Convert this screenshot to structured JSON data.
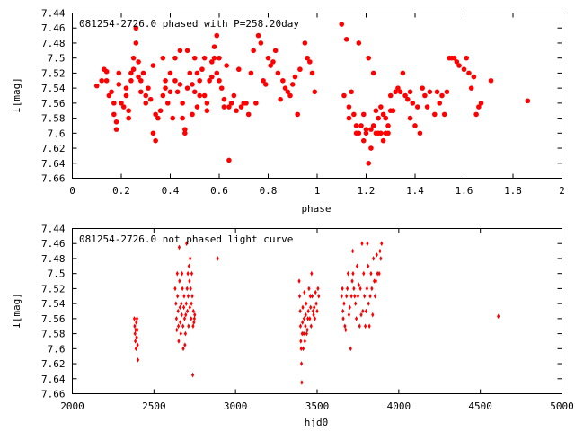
{
  "chart_data": [
    {
      "type": "scatter",
      "title": "081254-2726.0 phased with P=258.20day",
      "xlabel": "phase",
      "ylabel": "I[mag]",
      "xlim": [
        0,
        2
      ],
      "ylim": [
        7.44,
        7.66
      ],
      "y_inverted": true,
      "grid": false,
      "marker": "filled-circle",
      "color": "#ff0000",
      "x_ticks": [
        "0",
        "0.2",
        "0.4",
        "0.6",
        "0.8",
        "1",
        "1.2",
        "1.4",
        "1.6",
        "1.8",
        "2"
      ],
      "y_ticks": [
        "7.44",
        "7.46",
        "7.48",
        "7.5",
        "7.52",
        "7.54",
        "7.56",
        "7.58",
        "7.6",
        "7.62",
        "7.64",
        "7.66"
      ],
      "points": [
        [
          0.1,
          7.537
        ],
        [
          0.12,
          7.53
        ],
        [
          0.13,
          7.515
        ],
        [
          0.14,
          7.518
        ],
        [
          0.14,
          7.53
        ],
        [
          0.15,
          7.55
        ],
        [
          0.16,
          7.545
        ],
        [
          0.17,
          7.56
        ],
        [
          0.17,
          7.575
        ],
        [
          0.18,
          7.585
        ],
        [
          0.18,
          7.595
        ],
        [
          0.19,
          7.52
        ],
        [
          0.19,
          7.535
        ],
        [
          0.2,
          7.56
        ],
        [
          0.21,
          7.565
        ],
        [
          0.22,
          7.54
        ],
        [
          0.22,
          7.55
        ],
        [
          0.23,
          7.57
        ],
        [
          0.23,
          7.58
        ],
        [
          0.24,
          7.52
        ],
        [
          0.24,
          7.53
        ],
        [
          0.25,
          7.5
        ],
        [
          0.25,
          7.515
        ],
        [
          0.26,
          7.48
        ],
        [
          0.26,
          7.46
        ],
        [
          0.27,
          7.505
        ],
        [
          0.27,
          7.525
        ],
        [
          0.28,
          7.53
        ],
        [
          0.28,
          7.545
        ],
        [
          0.29,
          7.52
        ],
        [
          0.3,
          7.55
        ],
        [
          0.3,
          7.56
        ],
        [
          0.31,
          7.54
        ],
        [
          0.32,
          7.555
        ],
        [
          0.33,
          7.51
        ],
        [
          0.33,
          7.6
        ],
        [
          0.34,
          7.61
        ],
        [
          0.34,
          7.575
        ],
        [
          0.35,
          7.58
        ],
        [
          0.36,
          7.57
        ],
        [
          0.37,
          7.55
        ],
        [
          0.37,
          7.5
        ],
        [
          0.38,
          7.53
        ],
        [
          0.38,
          7.54
        ],
        [
          0.39,
          7.56
        ],
        [
          0.4,
          7.52
        ],
        [
          0.4,
          7.545
        ],
        [
          0.41,
          7.58
        ],
        [
          0.42,
          7.5
        ],
        [
          0.42,
          7.53
        ],
        [
          0.43,
          7.545
        ],
        [
          0.44,
          7.49
        ],
        [
          0.44,
          7.535
        ],
        [
          0.45,
          7.56
        ],
        [
          0.45,
          7.58
        ],
        [
          0.46,
          7.6
        ],
        [
          0.46,
          7.595
        ],
        [
          0.47,
          7.54
        ],
        [
          0.47,
          7.49
        ],
        [
          0.48,
          7.52
        ],
        [
          0.49,
          7.535
        ],
        [
          0.49,
          7.575
        ],
        [
          0.5,
          7.5
        ],
        [
          0.5,
          7.545
        ],
        [
          0.51,
          7.52
        ],
        [
          0.51,
          7.565
        ],
        [
          0.52,
          7.53
        ],
        [
          0.52,
          7.55
        ],
        [
          0.53,
          7.515
        ],
        [
          0.54,
          7.5
        ],
        [
          0.54,
          7.55
        ],
        [
          0.55,
          7.56
        ],
        [
          0.55,
          7.57
        ],
        [
          0.56,
          7.53
        ],
        [
          0.57,
          7.505
        ],
        [
          0.57,
          7.525
        ],
        [
          0.58,
          7.5
        ],
        [
          0.58,
          7.485
        ],
        [
          0.59,
          7.47
        ],
        [
          0.59,
          7.52
        ],
        [
          0.6,
          7.5
        ],
        [
          0.6,
          7.53
        ],
        [
          0.61,
          7.54
        ],
        [
          0.62,
          7.555
        ],
        [
          0.62,
          7.565
        ],
        [
          0.63,
          7.51
        ],
        [
          0.64,
          7.565
        ],
        [
          0.64,
          7.636
        ],
        [
          0.65,
          7.56
        ],
        [
          0.66,
          7.55
        ],
        [
          0.67,
          7.57
        ],
        [
          0.68,
          7.515
        ],
        [
          0.69,
          7.565
        ],
        [
          0.7,
          7.56
        ],
        [
          0.71,
          7.56
        ],
        [
          0.72,
          7.575
        ],
        [
          0.73,
          7.52
        ],
        [
          0.74,
          7.49
        ],
        [
          0.75,
          7.56
        ],
        [
          0.76,
          7.47
        ],
        [
          0.77,
          7.48
        ],
        [
          0.78,
          7.53
        ],
        [
          0.79,
          7.535
        ],
        [
          0.8,
          7.5
        ],
        [
          0.81,
          7.51
        ],
        [
          0.82,
          7.505
        ],
        [
          0.83,
          7.49
        ],
        [
          0.84,
          7.52
        ],
        [
          0.85,
          7.555
        ],
        [
          0.86,
          7.53
        ],
        [
          0.87,
          7.54
        ],
        [
          0.88,
          7.545
        ],
        [
          0.89,
          7.55
        ],
        [
          0.9,
          7.535
        ],
        [
          0.91,
          7.525
        ],
        [
          0.92,
          7.575
        ],
        [
          0.93,
          7.515
        ],
        [
          0.95,
          7.48
        ],
        [
          0.96,
          7.5
        ],
        [
          0.97,
          7.505
        ],
        [
          0.98,
          7.52
        ],
        [
          0.99,
          7.545
        ],
        [
          1.1,
          7.455
        ],
        [
          1.11,
          7.55
        ],
        [
          1.12,
          7.475
        ],
        [
          1.13,
          7.565
        ],
        [
          1.13,
          7.58
        ],
        [
          1.14,
          7.545
        ],
        [
          1.15,
          7.575
        ],
        [
          1.16,
          7.59
        ],
        [
          1.16,
          7.6
        ],
        [
          1.17,
          7.48
        ],
        [
          1.17,
          7.6
        ],
        [
          1.18,
          7.59
        ],
        [
          1.19,
          7.575
        ],
        [
          1.19,
          7.61
        ],
        [
          1.2,
          7.595
        ],
        [
          1.2,
          7.6
        ],
        [
          1.21,
          7.5
        ],
        [
          1.21,
          7.64
        ],
        [
          1.22,
          7.62
        ],
        [
          1.22,
          7.595
        ],
        [
          1.23,
          7.52
        ],
        [
          1.23,
          7.59
        ],
        [
          1.24,
          7.6
        ],
        [
          1.24,
          7.57
        ],
        [
          1.25,
          7.6
        ],
        [
          1.25,
          7.58
        ],
        [
          1.26,
          7.565
        ],
        [
          1.26,
          7.6
        ],
        [
          1.27,
          7.575
        ],
        [
          1.27,
          7.61
        ],
        [
          1.28,
          7.6
        ],
        [
          1.28,
          7.58
        ],
        [
          1.29,
          7.59
        ],
        [
          1.29,
          7.6
        ],
        [
          1.3,
          7.57
        ],
        [
          1.3,
          7.55
        ],
        [
          1.31,
          7.57
        ],
        [
          1.32,
          7.545
        ],
        [
          1.33,
          7.54
        ],
        [
          1.34,
          7.545
        ],
        [
          1.35,
          7.52
        ],
        [
          1.36,
          7.55
        ],
        [
          1.37,
          7.555
        ],
        [
          1.38,
          7.545
        ],
        [
          1.38,
          7.58
        ],
        [
          1.39,
          7.56
        ],
        [
          1.4,
          7.59
        ],
        [
          1.41,
          7.565
        ],
        [
          1.42,
          7.6
        ],
        [
          1.43,
          7.54
        ],
        [
          1.44,
          7.55
        ],
        [
          1.45,
          7.565
        ],
        [
          1.46,
          7.545
        ],
        [
          1.48,
          7.575
        ],
        [
          1.49,
          7.545
        ],
        [
          1.5,
          7.56
        ],
        [
          1.51,
          7.55
        ],
        [
          1.52,
          7.575
        ],
        [
          1.53,
          7.545
        ],
        [
          1.54,
          7.5
        ],
        [
          1.55,
          7.5
        ],
        [
          1.56,
          7.5
        ],
        [
          1.57,
          7.505
        ],
        [
          1.58,
          7.51
        ],
        [
          1.6,
          7.515
        ],
        [
          1.61,
          7.5
        ],
        [
          1.62,
          7.52
        ],
        [
          1.63,
          7.54
        ],
        [
          1.64,
          7.525
        ],
        [
          1.65,
          7.575
        ],
        [
          1.66,
          7.565
        ],
        [
          1.67,
          7.56
        ],
        [
          1.71,
          7.53
        ],
        [
          1.86,
          7.557
        ]
      ]
    },
    {
      "type": "scatter",
      "title": "081254-2726.0 not phased light curve",
      "xlabel": "hjd0",
      "ylabel": "I[mag]",
      "xlim": [
        2000,
        5000
      ],
      "ylim": [
        7.44,
        7.66
      ],
      "y_inverted": true,
      "grid": false,
      "marker": "small-diamond",
      "color": "#ff0000",
      "x_ticks": [
        "2000",
        "2500",
        "3000",
        "3500",
        "4000",
        "4500",
        "5000"
      ],
      "y_ticks": [
        "7.44",
        "7.46",
        "7.48",
        "7.5",
        "7.52",
        "7.54",
        "7.56",
        "7.58",
        "7.6",
        "7.62",
        "7.64",
        "7.66"
      ],
      "points": [
        [
          2380,
          7.56
        ],
        [
          2382,
          7.57
        ],
        [
          2384,
          7.58
        ],
        [
          2386,
          7.59
        ],
        [
          2388,
          7.575
        ],
        [
          2390,
          7.6
        ],
        [
          2392,
          7.565
        ],
        [
          2394,
          7.585
        ],
        [
          2396,
          7.56
        ],
        [
          2398,
          7.575
        ],
        [
          2400,
          7.595
        ],
        [
          2402,
          7.615
        ],
        [
          2630,
          7.52
        ],
        [
          2635,
          7.54
        ],
        [
          2638,
          7.56
        ],
        [
          2640,
          7.575
        ],
        [
          2643,
          7.5
        ],
        [
          2645,
          7.53
        ],
        [
          2648,
          7.55
        ],
        [
          2650,
          7.57
        ],
        [
          2652,
          7.59
        ],
        [
          2655,
          7.465
        ],
        [
          2657,
          7.51
        ],
        [
          2660,
          7.545
        ],
        [
          2662,
          7.565
        ],
        [
          2665,
          7.58
        ],
        [
          2668,
          7.54
        ],
        [
          2670,
          7.555
        ],
        [
          2672,
          7.5
        ],
        [
          2675,
          7.52
        ],
        [
          2678,
          7.57
        ],
        [
          2680,
          7.6
        ],
        [
          2683,
          7.545
        ],
        [
          2685,
          7.53
        ],
        [
          2688,
          7.56
        ],
        [
          2690,
          7.595
        ],
        [
          2693,
          7.58
        ],
        [
          2695,
          7.555
        ],
        [
          2698,
          7.54
        ],
        [
          2700,
          7.46
        ],
        [
          2703,
          7.52
        ],
        [
          2705,
          7.55
        ],
        [
          2708,
          7.5
        ],
        [
          2710,
          7.53
        ],
        [
          2712,
          7.57
        ],
        [
          2715,
          7.49
        ],
        [
          2718,
          7.51
        ],
        [
          2720,
          7.545
        ],
        [
          2722,
          7.48
        ],
        [
          2725,
          7.52
        ],
        [
          2728,
          7.56
        ],
        [
          2730,
          7.54
        ],
        [
          2732,
          7.5
        ],
        [
          2735,
          7.53
        ],
        [
          2738,
          7.635
        ],
        [
          2740,
          7.57
        ],
        [
          2742,
          7.55
        ],
        [
          2745,
          7.565
        ],
        [
          2748,
          7.56
        ],
        [
          2750,
          7.555
        ],
        [
          2890,
          7.48
        ],
        [
          3390,
          7.51
        ],
        [
          3393,
          7.53
        ],
        [
          3396,
          7.55
        ],
        [
          3398,
          7.57
        ],
        [
          3400,
          7.59
        ],
        [
          3402,
          7.6
        ],
        [
          3404,
          7.62
        ],
        [
          3406,
          7.645
        ],
        [
          3408,
          7.58
        ],
        [
          3410,
          7.565
        ],
        [
          3412,
          7.545
        ],
        [
          3415,
          7.6
        ],
        [
          3418,
          7.58
        ],
        [
          3420,
          7.56
        ],
        [
          3422,
          7.525
        ],
        [
          3425,
          7.59
        ],
        [
          3428,
          7.57
        ],
        [
          3430,
          7.555
        ],
        [
          3433,
          7.54
        ],
        [
          3436,
          7.58
        ],
        [
          3440,
          7.575
        ],
        [
          3443,
          7.56
        ],
        [
          3446,
          7.55
        ],
        [
          3450,
          7.52
        ],
        [
          3455,
          7.56
        ],
        [
          3458,
          7.53
        ],
        [
          3460,
          7.545
        ],
        [
          3463,
          7.57
        ],
        [
          3466,
          7.5
        ],
        [
          3470,
          7.53
        ],
        [
          3475,
          7.55
        ],
        [
          3478,
          7.555
        ],
        [
          3482,
          7.545
        ],
        [
          3486,
          7.56
        ],
        [
          3490,
          7.525
        ],
        [
          3495,
          7.54
        ],
        [
          3500,
          7.55
        ],
        [
          3505,
          7.52
        ],
        [
          3510,
          7.53
        ],
        [
          3650,
          7.53
        ],
        [
          3655,
          7.52
        ],
        [
          3658,
          7.55
        ],
        [
          3660,
          7.56
        ],
        [
          3665,
          7.54
        ],
        [
          3670,
          7.57
        ],
        [
          3675,
          7.575
        ],
        [
          3680,
          7.53
        ],
        [
          3685,
          7.52
        ],
        [
          3690,
          7.5
        ],
        [
          3695,
          7.555
        ],
        [
          3700,
          7.545
        ],
        [
          3705,
          7.6
        ],
        [
          3710,
          7.53
        ],
        [
          3715,
          7.51
        ],
        [
          3718,
          7.47
        ],
        [
          3720,
          7.5
        ],
        [
          3725,
          7.52
        ],
        [
          3730,
          7.53
        ],
        [
          3735,
          7.54
        ],
        [
          3740,
          7.56
        ],
        [
          3745,
          7.49
        ],
        [
          3750,
          7.53
        ],
        [
          3755,
          7.515
        ],
        [
          3760,
          7.57
        ],
        [
          3765,
          7.52
        ],
        [
          3770,
          7.555
        ],
        [
          3775,
          7.46
        ],
        [
          3780,
          7.55
        ],
        [
          3785,
          7.5
        ],
        [
          3790,
          7.53
        ],
        [
          3795,
          7.57
        ],
        [
          3800,
          7.55
        ],
        [
          3805,
          7.52
        ],
        [
          3808,
          7.46
        ],
        [
          3812,
          7.49
        ],
        [
          3815,
          7.54
        ],
        [
          3820,
          7.57
        ],
        [
          3825,
          7.53
        ],
        [
          3830,
          7.5
        ],
        [
          3835,
          7.52
        ],
        [
          3840,
          7.555
        ],
        [
          3845,
          7.48
        ],
        [
          3850,
          7.51
        ],
        [
          3855,
          7.53
        ],
        [
          3860,
          7.51
        ],
        [
          3865,
          7.475
        ],
        [
          3870,
          7.5
        ],
        [
          3880,
          7.5
        ],
        [
          3885,
          7.47
        ],
        [
          3890,
          7.48
        ],
        [
          3895,
          7.46
        ],
        [
          4610,
          7.557
        ]
      ]
    }
  ]
}
